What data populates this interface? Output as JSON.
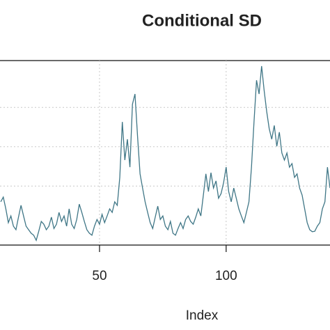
{
  "chart_data": {
    "type": "line",
    "title": "Conditional SD",
    "xlabel": "Index",
    "x": [
      11,
      12,
      13,
      14,
      15,
      16,
      17,
      18,
      19,
      20,
      21,
      22,
      23,
      24,
      25,
      26,
      27,
      28,
      29,
      30,
      31,
      32,
      33,
      34,
      35,
      36,
      37,
      38,
      39,
      40,
      41,
      42,
      43,
      44,
      45,
      46,
      47,
      48,
      49,
      50,
      51,
      52,
      53,
      54,
      55,
      56,
      57,
      58,
      59,
      60,
      61,
      62,
      63,
      64,
      65,
      66,
      67,
      68,
      69,
      70,
      71,
      72,
      73,
      74,
      75,
      76,
      77,
      78,
      79,
      80,
      81,
      82,
      83,
      84,
      85,
      86,
      87,
      88,
      89,
      90,
      91,
      92,
      93,
      94,
      95,
      96,
      97,
      98,
      99,
      100,
      101,
      102,
      103,
      104,
      105,
      106,
      107,
      108,
      109,
      110,
      111,
      112,
      113,
      114,
      115,
      116,
      117,
      118,
      119,
      120,
      121,
      122,
      123,
      124,
      125,
      126,
      127,
      128,
      129,
      130,
      131,
      132,
      133,
      134,
      135,
      136,
      137,
      138,
      139,
      140,
      141
    ],
    "series": [
      {
        "color": "#3f7686",
        "values": [
          1.6,
          1.72,
          1.42,
          1.07,
          1.24,
          0.98,
          0.89,
          1.21,
          1.51,
          1.24,
          0.98,
          0.89,
          0.8,
          0.75,
          0.62,
          0.85,
          1.1,
          1.03,
          0.89,
          0.98,
          1.21,
          0.92,
          1.03,
          1.33,
          1.1,
          1.24,
          0.98,
          1.42,
          1.03,
          0.92,
          1.15,
          1.54,
          1.33,
          1.1,
          0.89,
          0.8,
          0.75,
          0.98,
          1.15,
          1.03,
          1.28,
          1.07,
          1.24,
          1.42,
          1.33,
          1.6,
          1.51,
          2.22,
          3.63,
          2.66,
          3.19,
          2.48,
          4.08,
          4.34,
          3.28,
          2.31,
          1.95,
          1.6,
          1.33,
          1.07,
          0.92,
          1.21,
          1.49,
          1.15,
          1.24,
          0.98,
          0.89,
          1.1,
          0.8,
          0.75,
          0.92,
          1.07,
          0.92,
          1.15,
          1.24,
          1.1,
          1.03,
          1.21,
          1.42,
          1.24,
          1.77,
          2.31,
          1.86,
          2.34,
          1.95,
          2.13,
          1.69,
          1.81,
          2.09,
          2.48,
          1.86,
          1.6,
          1.95,
          1.69,
          1.42,
          1.24,
          1.07,
          1.33,
          1.6,
          2.48,
          3.63,
          4.69,
          4.34,
          5.05,
          4.43,
          3.9,
          3.46,
          3.19,
          3.54,
          3.01,
          3.37,
          2.84,
          2.66,
          2.84,
          2.48,
          2.57,
          2.22,
          2.31,
          1.95,
          1.77,
          1.42,
          1.07,
          0.89,
          0.84,
          0.85,
          0.98,
          1.07,
          1.42,
          1.6,
          2.48,
          1.95
        ]
      }
    ],
    "xlim": [
      10.7,
      141.2
    ],
    "xticks": [
      50,
      100
    ],
    "ylim": [
      0.5,
      5.19
    ],
    "ygrid": [
      2,
      3,
      4
    ],
    "grid": true
  }
}
